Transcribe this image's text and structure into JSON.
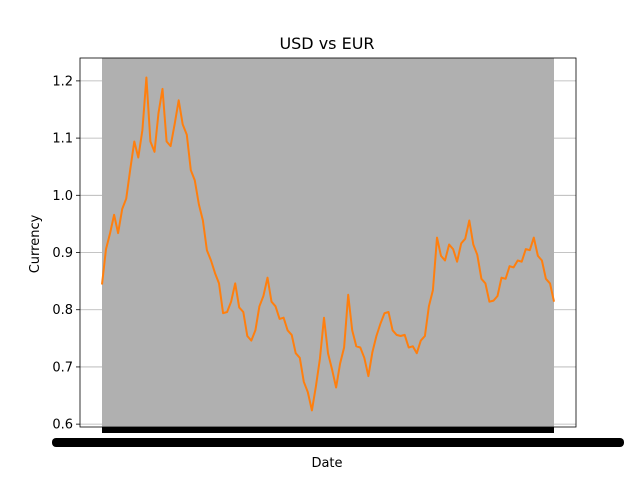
{
  "chart_data": {
    "type": "line",
    "title": "USD vs EUR",
    "xlabel": "Date",
    "ylabel": "Currency",
    "ylim": [
      0.595,
      1.24
    ],
    "yticks": [
      0.6,
      0.7,
      0.8,
      0.9,
      1.0,
      1.1,
      1.2
    ],
    "ytick_labels": [
      "0.6",
      "0.7",
      "0.8",
      "0.9",
      "1.0",
      "1.1",
      "1.2"
    ],
    "grid": "horizontal",
    "x_axis_note": "x tick labels are overlapping and illegible",
    "colors": {
      "line": "#ff7f0e",
      "fill": "#b0b0b0",
      "grid": "#b0b0b0",
      "axes": "#000000"
    },
    "series": [
      {
        "values": [
          0.85,
          0.9,
          0.94,
          0.96,
          0.94,
          0.97,
          1.0,
          1.04,
          1.1,
          1.06,
          1.12,
          1.2,
          1.1,
          1.07,
          1.15,
          1.18,
          1.1,
          1.08,
          1.13,
          1.16,
          1.13,
          1.1,
          1.05,
          1.02,
          0.99,
          0.95,
          0.91,
          0.88,
          0.87,
          0.84,
          0.8,
          0.79,
          0.82,
          0.84,
          0.81,
          0.79,
          0.76,
          0.74,
          0.77,
          0.8,
          0.83,
          0.85,
          0.82,
          0.8,
          0.79,
          0.78,
          0.77,
          0.75,
          0.73,
          0.71,
          0.68,
          0.65,
          0.63,
          0.66,
          0.72,
          0.78,
          0.73,
          0.69,
          0.67,
          0.7,
          0.74,
          0.82,
          0.77,
          0.73,
          0.74,
          0.71,
          0.69,
          0.72,
          0.76,
          0.77,
          0.8,
          0.79,
          0.77,
          0.75,
          0.76,
          0.75,
          0.74,
          0.73,
          0.73,
          0.74,
          0.76,
          0.8,
          0.84,
          0.92,
          0.9,
          0.88,
          0.92,
          0.9,
          0.89,
          0.91,
          0.93,
          0.95,
          0.92,
          0.89,
          0.86,
          0.84,
          0.82,
          0.81,
          0.83,
          0.85,
          0.86,
          0.87,
          0.88,
          0.88,
          0.89,
          0.9,
          0.91,
          0.92,
          0.9,
          0.88,
          0.86,
          0.84,
          0.82
        ]
      }
    ]
  }
}
